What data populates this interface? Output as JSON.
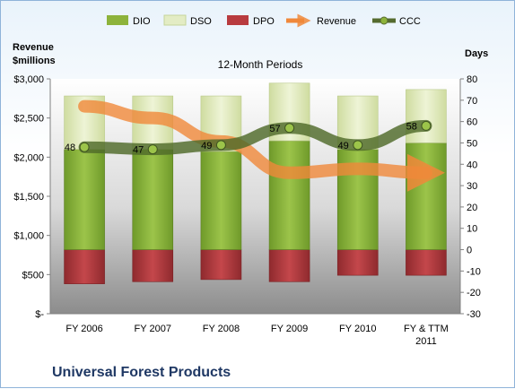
{
  "chart_data": {
    "type": "bar",
    "subtitle": "12-Month Periods",
    "company": "Universal Forest Products",
    "left_axis": {
      "title_line1": "Revenue",
      "title_line2": "$millions",
      "ylim": [
        0,
        3000
      ],
      "ticks": [
        "$-",
        "$500",
        "$1,000",
        "$1,500",
        "$2,000",
        "$2,500",
        "$3,000"
      ]
    },
    "right_axis": {
      "title": "Days",
      "ylim": [
        -30,
        80
      ],
      "ticks": [
        "-30",
        "-20",
        "-10",
        "0",
        "10",
        "20",
        "30",
        "40",
        "50",
        "60",
        "70",
        "80"
      ]
    },
    "categories": [
      "FY 2006",
      "FY 2007",
      "FY 2008",
      "FY 2009",
      "FY 2010",
      "FY & TTM 2011"
    ],
    "series": [
      {
        "name": "DIO",
        "axis": "days",
        "color": "#8db33b",
        "values": [
          47,
          47,
          46,
          51,
          47,
          50
        ]
      },
      {
        "name": "DSO",
        "axis": "days",
        "color": "#e3ecc4",
        "values": [
          25,
          25,
          26,
          27,
          25,
          25
        ]
      },
      {
        "name": "DPO",
        "axis": "days",
        "color": "#b83b3f",
        "values": [
          -16,
          -15,
          -14,
          -15,
          -12,
          -12
        ]
      },
      {
        "name": "Revenue",
        "axis": "revenue",
        "color": "#f0883a",
        "values": [
          2650,
          2500,
          2200,
          1800,
          1850,
          1800
        ]
      },
      {
        "name": "CCC",
        "axis": "days",
        "color": "#556b2f",
        "values": [
          48,
          47,
          49,
          57,
          49,
          58
        ]
      }
    ],
    "data_labels": [
      "48",
      "47",
      "49",
      "57",
      "49",
      "58"
    ],
    "legend_position": "top"
  }
}
